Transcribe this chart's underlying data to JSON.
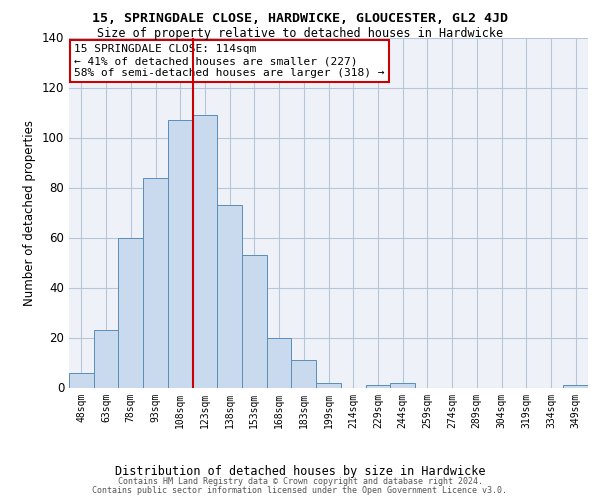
{
  "title": "15, SPRINGDALE CLOSE, HARDWICKE, GLOUCESTER, GL2 4JD",
  "subtitle": "Size of property relative to detached houses in Hardwicke",
  "xlabel": "Distribution of detached houses by size in Hardwicke",
  "ylabel": "Number of detached properties",
  "bar_labels": [
    "48sqm",
    "63sqm",
    "78sqm",
    "93sqm",
    "108sqm",
    "123sqm",
    "138sqm",
    "153sqm",
    "168sqm",
    "183sqm",
    "199sqm",
    "214sqm",
    "229sqm",
    "244sqm",
    "259sqm",
    "274sqm",
    "289sqm",
    "304sqm",
    "319sqm",
    "334sqm",
    "349sqm"
  ],
  "bar_values": [
    6,
    23,
    60,
    84,
    107,
    109,
    73,
    53,
    20,
    11,
    2,
    0,
    1,
    2,
    0,
    0,
    0,
    0,
    0,
    0,
    1
  ],
  "bar_color": "#c9d9ee",
  "bar_edge_color": "#5b8db8",
  "vline_x_index": 4.5,
  "vline_color": "#cc0000",
  "annotation_text": "15 SPRINGDALE CLOSE: 114sqm\n← 41% of detached houses are smaller (227)\n58% of semi-detached houses are larger (318) →",
  "annotation_box_color": "white",
  "annotation_box_edge_color": "#cc0000",
  "ylim": [
    0,
    140
  ],
  "yticks": [
    0,
    20,
    40,
    60,
    80,
    100,
    120,
    140
  ],
  "grid_color": "#b8c4d8",
  "bg_color": "#eef2f8",
  "footer_line1": "Contains HM Land Registry data © Crown copyright and database right 2024.",
  "footer_line2": "Contains public sector information licensed under the Open Government Licence v3.0."
}
